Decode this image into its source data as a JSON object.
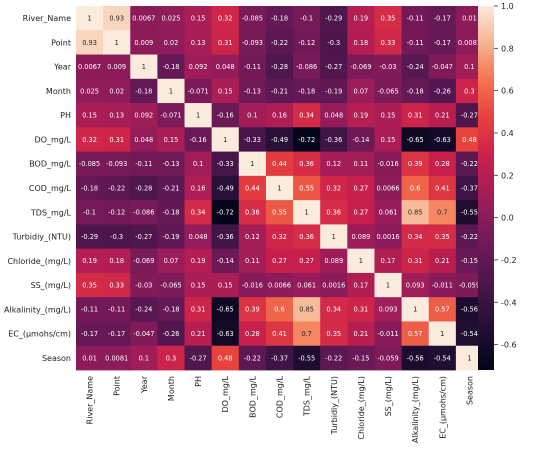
{
  "chart_data": {
    "type": "heatmap",
    "title": "",
    "xlabel": "",
    "ylabel": "",
    "variables": [
      "River_Name",
      "Point",
      "Year",
      "Month",
      "PH",
      "DO_mg/L",
      "BOD_mg/L",
      "COD_mg/L",
      "TDS_mg/L",
      "Turbidiy_(NTU)",
      "Chloride_(mg/L)",
      "SS_(mg/L)",
      "Alkalinity_(mg/L)",
      "EC_(μmohs/cm)",
      "Season"
    ],
    "labels": [
      [
        "1",
        "0.93",
        "0.0067",
        "0.025",
        "0.15",
        "0.32",
        "-0.085",
        "-0.18",
        "-0.1",
        "-0.29",
        "0.19",
        "0.35",
        "-0.11",
        "-0.17",
        "0.01"
      ],
      [
        "0.93",
        "1",
        "0.009",
        "0.02",
        "0.13",
        "0.31",
        "-0.093",
        "-0.22",
        "-0.12",
        "-0.3",
        "0.18",
        "0.33",
        "-0.11",
        "-0.17",
        "0.0081"
      ],
      [
        "0.0067",
        "0.009",
        "1",
        "-0.18",
        "0.092",
        "0.048",
        "-0.11",
        "-0.28",
        "-0.086",
        "-0.27",
        "-0.069",
        "-0.03",
        "-0.24",
        "-0.047",
        "0.1"
      ],
      [
        "0.025",
        "0.02",
        "-0.18",
        "1",
        "-0.071",
        "0.15",
        "-0.13",
        "-0.21",
        "-0.18",
        "-0.19",
        "0.07",
        "-0.065",
        "-0.18",
        "-0.26",
        "0.3"
      ],
      [
        "0.15",
        "0.13",
        "0.092",
        "-0.071",
        "1",
        "-0.16",
        "0.1",
        "0.16",
        "0.34",
        "0.048",
        "0.19",
        "0.15",
        "0.31",
        "0.21",
        "-0.27"
      ],
      [
        "0.32",
        "0.31",
        "0.048",
        "0.15",
        "-0.16",
        "1",
        "-0.33",
        "-0.49",
        "-0.72",
        "-0.36",
        "-0.14",
        "0.15",
        "-0.65",
        "-0.63",
        "0.48"
      ],
      [
        "-0.085",
        "-0.093",
        "-0.11",
        "-0.13",
        "0.1",
        "-0.33",
        "1",
        "0.44",
        "0.36",
        "0.12",
        "0.11",
        "-0.016",
        "0.39",
        "0.28",
        "-0.22"
      ],
      [
        "-0.18",
        "-0.22",
        "-0.28",
        "-0.21",
        "0.16",
        "-0.49",
        "0.44",
        "1",
        "0.55",
        "0.32",
        "0.27",
        "0.0066",
        "0.6",
        "0.41",
        "-0.37"
      ],
      [
        "-0.1",
        "-0.12",
        "-0.086",
        "-0.18",
        "0.34",
        "-0.72",
        "0.36",
        "0.55",
        "1",
        "0.36",
        "0.27",
        "0.061",
        "0.85",
        "0.7",
        "-0.55"
      ],
      [
        "-0.29",
        "-0.3",
        "-0.27",
        "-0.19",
        "0.048",
        "-0.36",
        "0.12",
        "0.32",
        "0.36",
        "1",
        "0.089",
        "0.0016",
        "0.34",
        "0.35",
        "-0.22"
      ],
      [
        "0.19",
        "0.18",
        "-0.069",
        "0.07",
        "0.19",
        "-0.14",
        "0.11",
        "0.27",
        "0.27",
        "0.089",
        "1",
        "0.17",
        "0.31",
        "0.21",
        "-0.15"
      ],
      [
        "0.35",
        "0.33",
        "-0.03",
        "-0.065",
        "0.15",
        "0.15",
        "-0.016",
        "0.0066",
        "0.061",
        "0.0016",
        "0.17",
        "1",
        "0.093",
        "-0.011",
        "-0.059"
      ],
      [
        "-0.11",
        "-0.11",
        "-0.24",
        "-0.18",
        "0.31",
        "-0.65",
        "0.39",
        "0.6",
        "0.85",
        "0.34",
        "0.31",
        "0.093",
        "1",
        "0.57",
        "-0.56"
      ],
      [
        "-0.17",
        "-0.17",
        "-0.047",
        "-0.26",
        "0.21",
        "-0.63",
        "0.28",
        "0.41",
        "0.7",
        "0.35",
        "0.21",
        "-0.011",
        "0.57",
        "1",
        "-0.54"
      ],
      [
        "0.01",
        "0.0081",
        "0.1",
        "0.3",
        "-0.27",
        "0.48",
        "-0.22",
        "-0.37",
        "-0.55",
        "-0.22",
        "-0.15",
        "-0.059",
        "-0.56",
        "-0.54",
        "1"
      ]
    ],
    "colorbar": {
      "range": [
        -0.72,
        1.0
      ],
      "ticks": [
        "1.0",
        "0.8",
        "0.6",
        "0.4",
        "0.2",
        "0.0",
        "-0.2",
        "-0.4",
        "-0.6"
      ],
      "colormap": "rocket"
    }
  }
}
